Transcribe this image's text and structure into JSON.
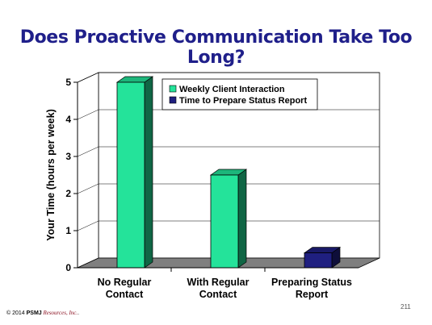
{
  "slide": {
    "title": "Does Proactive Communication Take Too Long?",
    "copyright_prefix": "© 2014",
    "copyright_brand": "PSMJ",
    "copyright_brand_tail": " Resources, Inc.",
    "copyright_suffix": ".",
    "page_number": "211"
  },
  "chart_data": {
    "type": "bar",
    "style": "3d-column",
    "categories": [
      "No Regular Contact",
      "With Regular Contact",
      "Preparing Status Report"
    ],
    "category_lines": [
      [
        "No Regular",
        "Contact"
      ],
      [
        "With Regular",
        "Contact"
      ],
      [
        "Preparing Status",
        "Report"
      ]
    ],
    "series": [
      {
        "name": "Weekly Client Interaction",
        "values": [
          5,
          2.5,
          0
        ],
        "color": "#24e39a"
      },
      {
        "name": "Time to Prepare Status Report",
        "values": [
          0,
          0,
          0.4
        ],
        "color": "#1f1f80"
      }
    ],
    "ylabel": "Your Time (hours per week)",
    "ylim": [
      0,
      5
    ],
    "yticks": [
      "0",
      "1",
      "2",
      "3",
      "4",
      "5"
    ],
    "grid": true,
    "legend_position": "top-right"
  }
}
